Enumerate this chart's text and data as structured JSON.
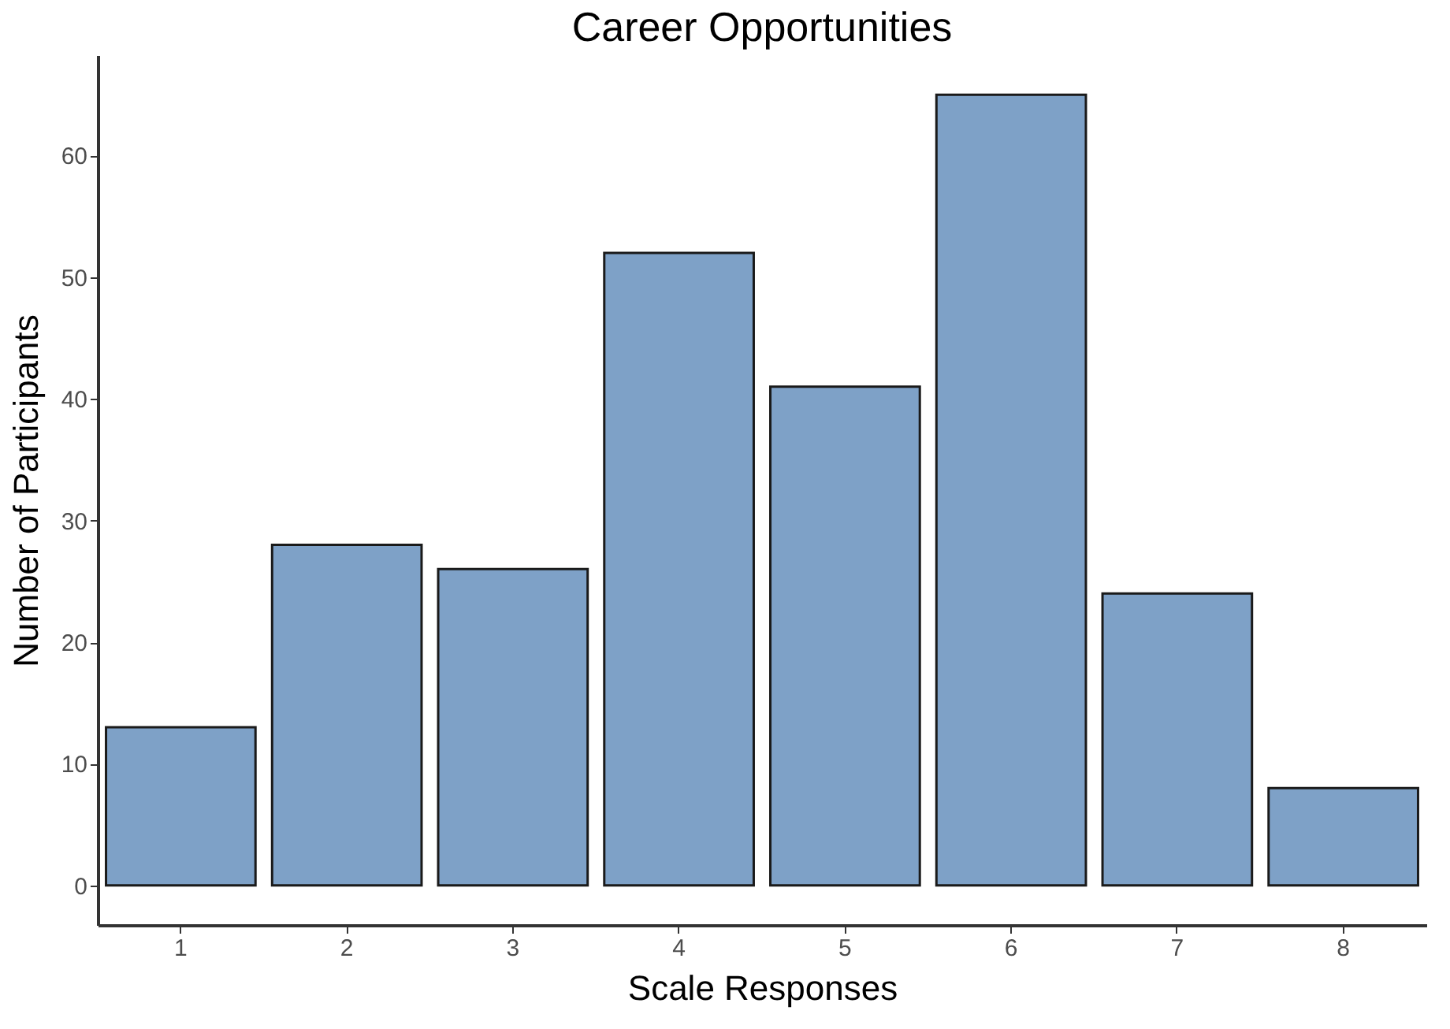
{
  "chart_data": {
    "type": "bar",
    "title": "Career Opportunities",
    "xlabel": "Scale Responses",
    "ylabel": "Number of Participants",
    "categories": [
      "1",
      "2",
      "3",
      "4",
      "5",
      "6",
      "7",
      "8"
    ],
    "values": [
      13,
      28,
      26,
      52,
      41,
      65,
      24,
      8
    ],
    "color": "#7ea1c7",
    "ylim": [
      -3.25,
      68.25
    ],
    "yticks": [
      0,
      10,
      20,
      30,
      40,
      50,
      60
    ],
    "grid": false
  }
}
